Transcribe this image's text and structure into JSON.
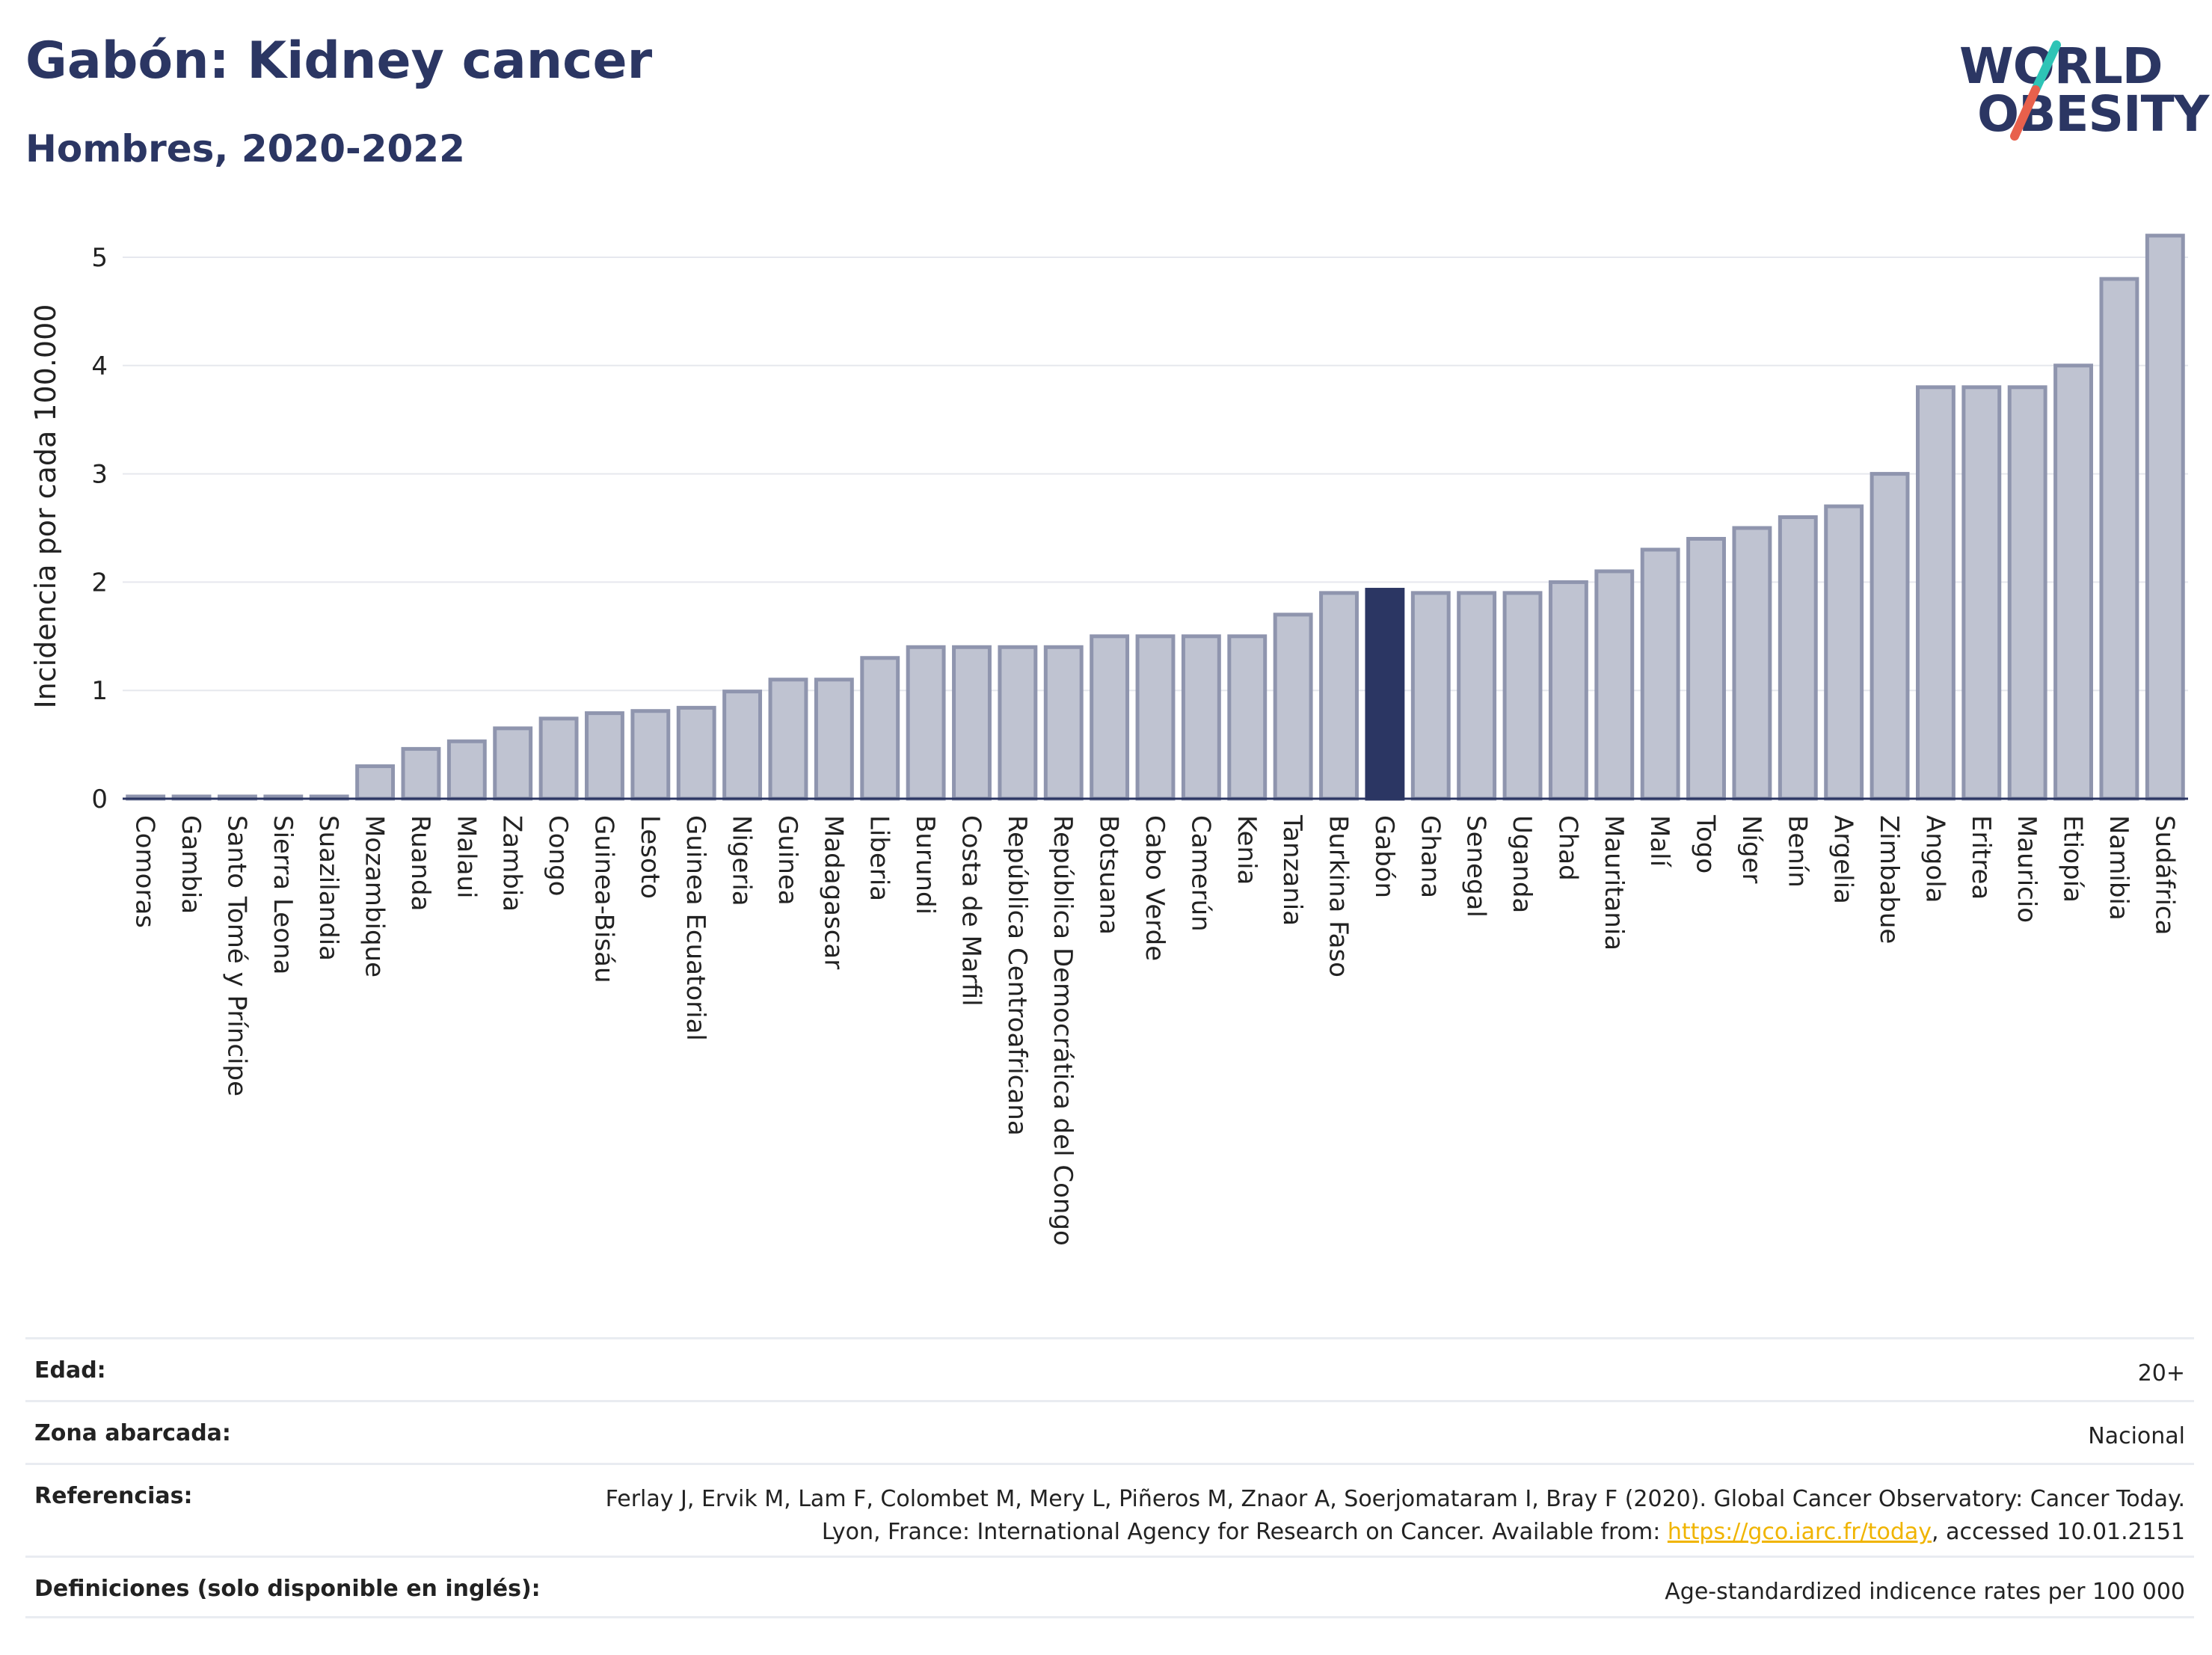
{
  "title": "Gabón: Kidney cancer",
  "subtitle": "Hombres, 2020-2022",
  "logo": {
    "line1": "WORLD",
    "line2": "OBESITY",
    "accent_color": "#2ec4b6",
    "accent_color2": "#e8604c"
  },
  "colors": {
    "bar": "#bfc3d1",
    "bar_border": "#8f95ae",
    "highlight": "#2b3663",
    "grid": "#e6e8ee"
  },
  "chart_data": {
    "type": "bar",
    "ylabel": "Incidencia por cada 100.000",
    "ylim": [
      0,
      5.3
    ],
    "yticks": [
      0,
      1,
      2,
      3,
      4,
      5
    ],
    "highlight": "Gabón",
    "categories": [
      "Comoras",
      "Gambia",
      "Santo Tomé y Príncipe",
      "Sierra Leona",
      "Suazilandia",
      "Mozambique",
      "Ruanda",
      "Malaui",
      "Zambia",
      "Congo",
      "Guinea-Bisáu",
      "Lesoto",
      "Guinea Ecuatorial",
      "Nigeria",
      "Guinea",
      "Madagascar",
      "Liberia",
      "Burundi",
      "Costa de Marfil",
      "República Centroafricana",
      "República Democrática del Congo",
      "Botsuana",
      "Cabo Verde",
      "Camerún",
      "Kenia",
      "Tanzania",
      "Burkina Faso",
      "Gabón",
      "Ghana",
      "Senegal",
      "Uganda",
      "Chad",
      "Mauritania",
      "Malí",
      "Togo",
      "Níger",
      "Benín",
      "Argelia",
      "Zimbabue",
      "Angola",
      "Eritrea",
      "Mauricio",
      "Etiopía",
      "Namibia",
      "Sudáfrica"
    ],
    "values": [
      0.02,
      0.02,
      0.02,
      0.02,
      0.02,
      0.3,
      0.46,
      0.53,
      0.65,
      0.74,
      0.79,
      0.81,
      0.84,
      0.99,
      1.1,
      1.1,
      1.3,
      1.4,
      1.4,
      1.4,
      1.4,
      1.5,
      1.5,
      1.5,
      1.5,
      1.7,
      1.9,
      1.93,
      1.9,
      1.9,
      1.9,
      2.0,
      2.1,
      2.3,
      2.4,
      2.5,
      2.6,
      2.7,
      3.0,
      3.8,
      3.8,
      3.8,
      4.0,
      4.8,
      5.2
    ]
  },
  "info": {
    "edad_label": "Edad:",
    "edad_value": "20+",
    "zona_label": "Zona abarcada:",
    "zona_value": "Nacional",
    "ref_label": "Referencias:",
    "ref_text1": "Ferlay J, Ervik M, Lam F, Colombet M, Mery L, Piñeros M, Znaor A, Soerjomataram I, Bray F (2020). Global Cancer Observatory: Cancer Today. Lyon, France: International Agency for Research on Cancer. Available from: ",
    "ref_link": "https://gco.iarc.fr/today",
    "ref_text2": ", accessed 10.01.2151",
    "def_label": "Definiciones (solo disponible en inglés):",
    "def_value": "Age-standardized indicence rates per 100 000"
  }
}
